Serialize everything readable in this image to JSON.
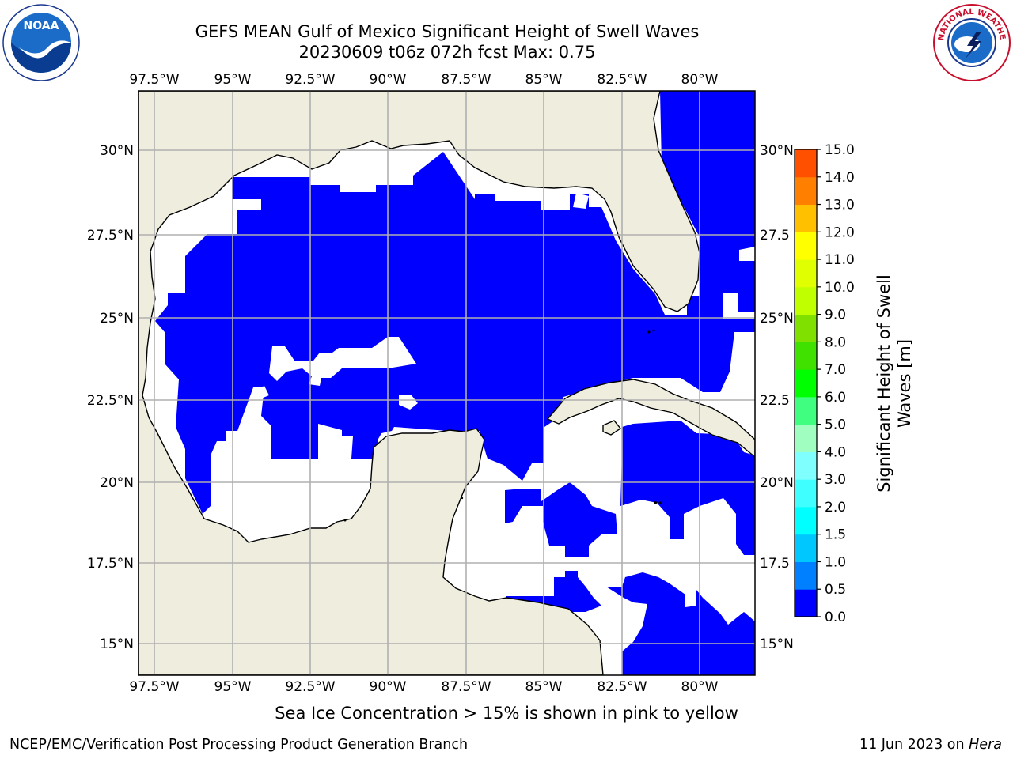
{
  "title_line1": "GEFS MEAN Gulf of Mexico Significant Height of Swell Waves",
  "title_line2": "20230609 t06z 072h fcst   Max: 0.75",
  "lon_labels": [
    "97.5°W",
    "95°W",
    "92.5°W",
    "90°W",
    "87.5°W",
    "85°W",
    "82.5°W",
    "80°W"
  ],
  "lat_labels": [
    "30°N",
    "27.5°N",
    "25°N",
    "22.5°N",
    "20°N",
    "17.5°N",
    "15°N"
  ],
  "right_lat_labels": [
    "30°N",
    "27.5",
    "25°N",
    "22.5",
    "20°N",
    "17.5",
    "15°N"
  ],
  "colorbar": {
    "label_line1": "Significant Height of Swell",
    "label_line2": "Waves [m]",
    "ticks": [
      "0.0",
      "0.5",
      "1.0",
      "1.5",
      "2.0",
      "3.0",
      "4.0",
      "5.0",
      "6.0",
      "7.0",
      "8.0",
      "9.0",
      "10.0",
      "11.0",
      "12.0",
      "13.0",
      "14.0",
      "15.0"
    ],
    "colors": [
      "#0000ff",
      "#0080ff",
      "#00c8ff",
      "#00ffff",
      "#40ffff",
      "#80ffff",
      "#a0ffc0",
      "#40ff80",
      "#00ff00",
      "#40e000",
      "#80e000",
      "#c0ff00",
      "#e0ff00",
      "#ffff00",
      "#ffc000",
      "#ff8000",
      "#ff5000",
      "#ff2000",
      "#ff0000"
    ]
  },
  "colors": {
    "land": "#eeedde",
    "ocean_swell": "#0000ff",
    "ocean_swell_high": "#0080ff",
    "grid": "#b0b0b0"
  },
  "subtitle": "Sea Ice Concentration > 15% is shown in pink to yellow",
  "footer_left": "NCEP/EMC/Verification Post Processing Product Generation Branch",
  "footer_right_date": "11 Jun 2023 on ",
  "footer_right_host": "Hera",
  "logos": {
    "noaa": "NOAA",
    "nws": "NATIONAL WEATHER SERVICE"
  }
}
